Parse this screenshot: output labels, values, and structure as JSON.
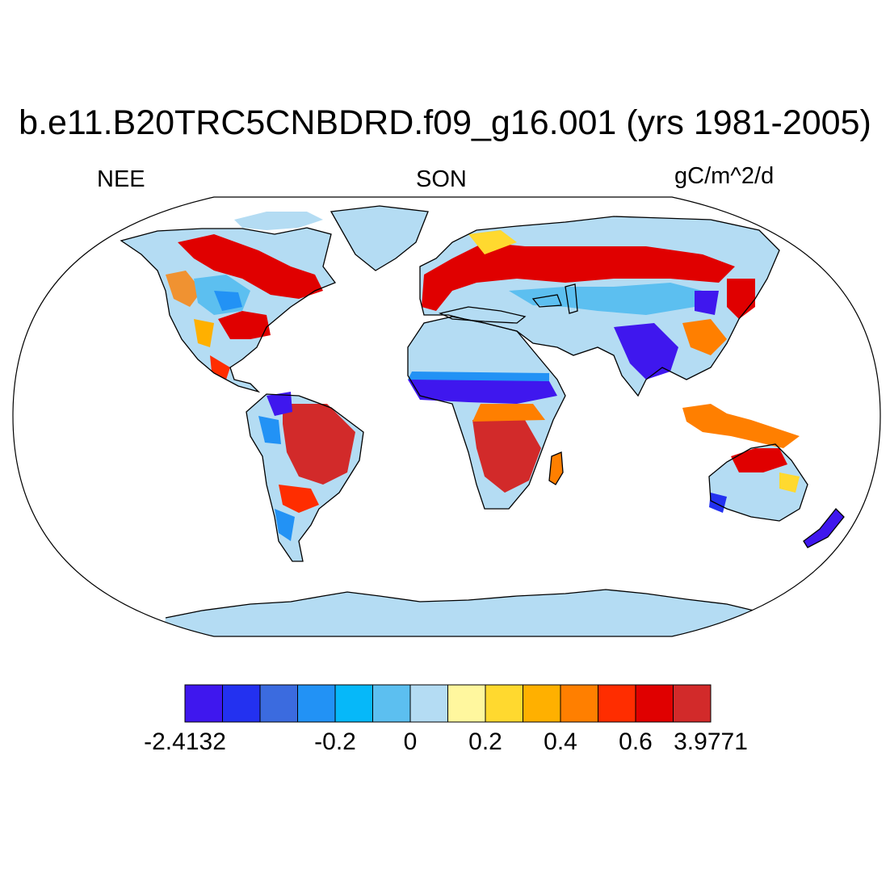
{
  "title": "b.e11.B20TRC5CNBDRD.f09_g16.001 (yrs 1981-2005)",
  "left_label": "NEE",
  "center_label": "SON",
  "right_label": "gC/m^2/d",
  "colorbar": {
    "colors": [
      "#3f17ee",
      "#2331f0",
      "#3b6bdf",
      "#2292f5",
      "#06b8f9",
      "#5cbff0",
      "#b4dcf3",
      "#fff79e",
      "#ffd92f",
      "#ffb000",
      "#ff7f00",
      "#ff2d00",
      "#e00000",
      "#d22a2a"
    ],
    "labels": [
      "-2.4132",
      "-0.2",
      "0",
      "0.2",
      "0.4",
      "0.6",
      "3.9771"
    ]
  },
  "map": {
    "projection": "Robinson",
    "ocean_color": "#ffffff",
    "land_base_color": "#b4dcf3"
  }
}
